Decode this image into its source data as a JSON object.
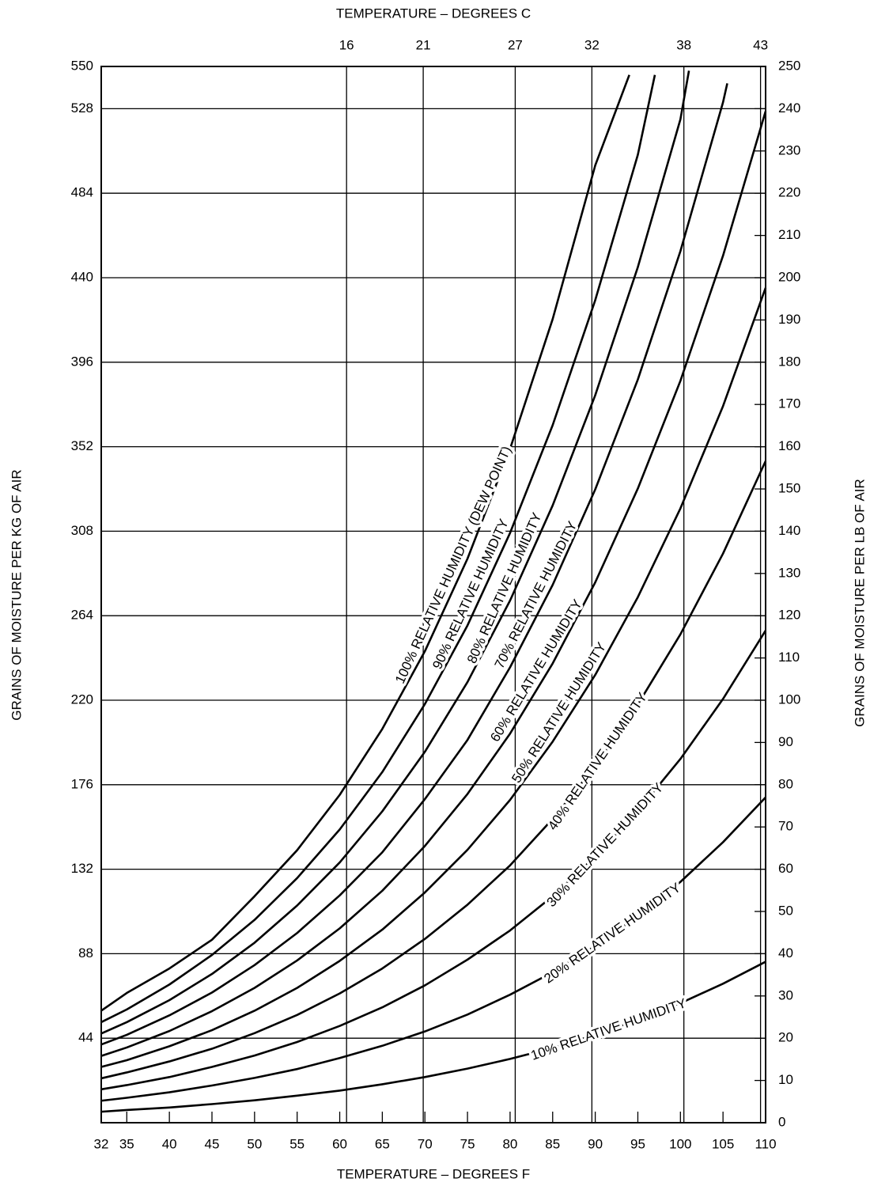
{
  "chart_data": {
    "type": "line",
    "x_label": "TEMPERATURE – DEGREES F",
    "x2_label": "TEMPERATURE – DEGREES C",
    "y_label": "GRAINS OF MOISTURE PER KG OF AIR",
    "y2_label": "GRAINS OF MOISTURE PER LB OF AIR",
    "xlim": [
      32,
      110
    ],
    "xticks": [
      32,
      35,
      40,
      45,
      50,
      55,
      60,
      65,
      70,
      75,
      80,
      85,
      90,
      95,
      100,
      105,
      110
    ],
    "x2lim": [
      0,
      43.33
    ],
    "x2ticks": [
      16,
      21,
      27,
      32,
      38,
      43
    ],
    "ylim": [
      0,
      550
    ],
    "yticks": [
      44,
      88,
      132,
      176,
      220,
      264,
      308,
      352,
      396,
      440,
      484,
      528,
      550
    ],
    "y2lim": [
      0,
      250
    ],
    "y2ticks": [
      0,
      10,
      20,
      30,
      40,
      50,
      60,
      70,
      80,
      90,
      100,
      110,
      120,
      130,
      140,
      150,
      160,
      170,
      180,
      190,
      200,
      210,
      220,
      230,
      240,
      250
    ],
    "grid": true,
    "series": [
      {
        "name": "100% RELATIVE HUMIDITY (DEW POINT)",
        "color": "#000000",
        "axis": "y2",
        "x": [
          32,
          35,
          40,
          45,
          50,
          55,
          60,
          65,
          70,
          75,
          80,
          85,
          90,
          94
        ],
        "values": [
          26.5,
          30.7,
          36.5,
          43.3,
          53.6,
          64.5,
          77.6,
          93.2,
          111.6,
          133.5,
          159.5,
          190.2,
          226.6,
          248
        ]
      },
      {
        "name": "90% RELATIVE HUMIDITY",
        "color": "#000000",
        "axis": "y2",
        "x": [
          32,
          35,
          40,
          45,
          50,
          55,
          60,
          65,
          70,
          75,
          80,
          85,
          90,
          95,
          97
        ],
        "values": [
          23.8,
          26.8,
          32.7,
          39.7,
          48.0,
          57.9,
          69.4,
          83.0,
          99.1,
          117.7,
          139.6,
          165.1,
          194.7,
          229.1,
          248
        ]
      },
      {
        "name": "80% RELATIVE HUMIDITY",
        "color": "#000000",
        "axis": "y2",
        "x": [
          32,
          35,
          40,
          45,
          50,
          55,
          60,
          65,
          70,
          75,
          80,
          85,
          90,
          95,
          100,
          101
        ],
        "values": [
          21.1,
          23.8,
          29.0,
          35.2,
          42.6,
          51.4,
          61.6,
          73.7,
          87.8,
          104.3,
          123.6,
          146.1,
          172.2,
          202.5,
          237.5,
          249
        ]
      },
      {
        "name": "70% RELATIVE HUMIDITY",
        "color": "#000000",
        "axis": "y2",
        "x": [
          32,
          35,
          40,
          45,
          50,
          55,
          60,
          65,
          70,
          75,
          80,
          85,
          90,
          95,
          100,
          105,
          105.5
        ],
        "values": [
          18.5,
          20.8,
          25.4,
          30.8,
          37.3,
          44.9,
          53.8,
          64.0,
          76.6,
          90.6,
          107.8,
          127.3,
          149.9,
          175.9,
          206.3,
          241.5,
          246
        ]
      },
      {
        "name": "60% RELATIVE HUMIDITY",
        "color": "#000000",
        "axis": "y2",
        "x": [
          32,
          35,
          40,
          45,
          50,
          55,
          60,
          65,
          70,
          75,
          80,
          85,
          90,
          95,
          100,
          105,
          110
        ],
        "values": [
          15.8,
          17.8,
          21.7,
          26.4,
          31.9,
          38.4,
          46.0,
          54.9,
          65.5,
          77.8,
          92.1,
          108.7,
          127.9,
          150.1,
          175.6,
          205.2,
          239.4
        ]
      },
      {
        "name": "50% RELATIVE HUMIDITY",
        "color": "#000000",
        "axis": "y2",
        "x": [
          32,
          35,
          40,
          45,
          50,
          55,
          60,
          65,
          70,
          75,
          80,
          85,
          90,
          95,
          100,
          105,
          110
        ],
        "values": [
          13.2,
          14.8,
          18.1,
          21.9,
          26.5,
          31.9,
          38.3,
          45.7,
          54.5,
          64.6,
          76.4,
          90.2,
          106.0,
          124.4,
          145.4,
          169.6,
          197.6
        ]
      },
      {
        "name": "40% RELATIVE HUMIDITY",
        "color": "#000000",
        "axis": "y2",
        "x": [
          32,
          35,
          40,
          45,
          50,
          55,
          60,
          65,
          70,
          75,
          80,
          85,
          90,
          95,
          100,
          105,
          110
        ],
        "values": [
          10.5,
          11.9,
          14.5,
          17.5,
          21.2,
          25.5,
          30.6,
          36.5,
          43.5,
          51.6,
          60.9,
          71.9,
          84.4,
          99.0,
          115.6,
          134.7,
          156.6
        ]
      },
      {
        "name": "30% RELATIVE HUMIDITY",
        "color": "#000000",
        "axis": "y2",
        "x": [
          32,
          35,
          40,
          45,
          50,
          55,
          60,
          65,
          70,
          75,
          80,
          85,
          90,
          95,
          100,
          105,
          110
        ],
        "values": [
          7.9,
          8.9,
          10.8,
          13.2,
          15.9,
          19.1,
          22.9,
          27.3,
          32.5,
          38.6,
          45.5,
          53.6,
          63.0,
          73.8,
          86.1,
          100.3,
          116.5
        ]
      },
      {
        "name": "20% RELATIVE HUMIDITY",
        "color": "#000000",
        "axis": "y2",
        "x": [
          32,
          35,
          40,
          45,
          50,
          55,
          60,
          65,
          70,
          75,
          80,
          85,
          90,
          95,
          100,
          105,
          110
        ],
        "values": [
          5.2,
          5.9,
          7.2,
          8.8,
          10.6,
          12.7,
          15.3,
          18.2,
          21.6,
          25.6,
          30.3,
          35.6,
          41.8,
          48.9,
          57.0,
          66.4,
          77.0
        ]
      },
      {
        "name": "10% RELATIVE HUMIDITY",
        "color": "#000000",
        "axis": "y2",
        "x": [
          32,
          35,
          40,
          45,
          50,
          55,
          60,
          65,
          70,
          75,
          80,
          85,
          90,
          95,
          100,
          105,
          110
        ],
        "values": [
          2.6,
          3.0,
          3.6,
          4.4,
          5.3,
          6.4,
          7.6,
          9.1,
          10.8,
          12.8,
          15.1,
          17.7,
          20.8,
          24.3,
          28.3,
          32.9,
          38.1
        ]
      }
    ]
  }
}
